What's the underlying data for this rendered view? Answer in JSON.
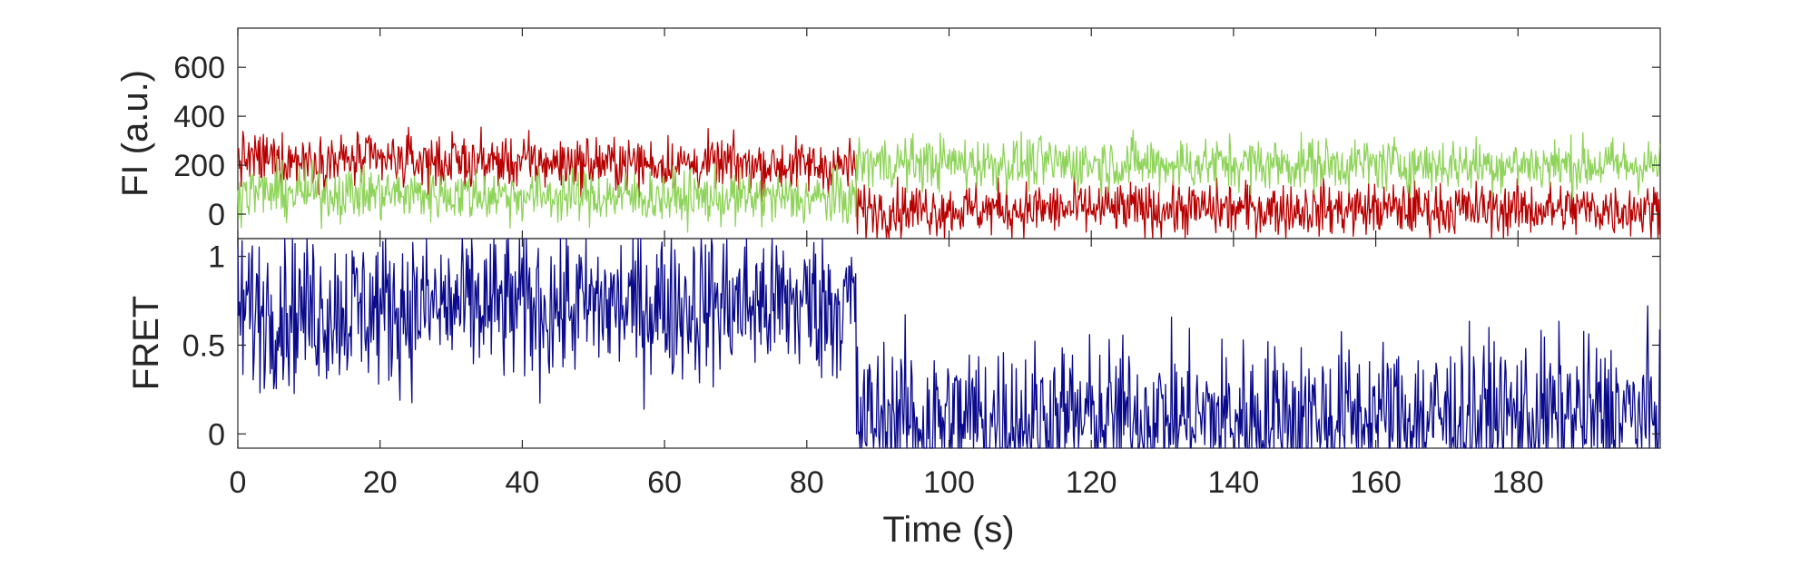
{
  "chart_data": {
    "type": "line",
    "x_range": [
      0,
      200
    ],
    "x_ticks": [
      0,
      20,
      40,
      60,
      80,
      100,
      120,
      140,
      160,
      180
    ],
    "xlabel": "Time (s)",
    "grid": false,
    "legend": "none",
    "panels": [
      {
        "id": "fluorescence",
        "ylabel": "FI (a.u.)",
        "ylim": [
          -100,
          760
        ],
        "y_ticks": [
          0,
          200,
          400,
          600
        ],
        "series": [
          {
            "color": "#b80000",
            "noise_amplitude": 55,
            "segments": [
              {
                "x": [
                  0,
                  87
                ],
                "y": [
                  225,
                  195
                ]
              },
              {
                "x": [
                  87,
                  200
                ],
                "y": [
                  20,
                  20
                ]
              }
            ]
          },
          {
            "color": "#8fd45a",
            "noise_amplitude": 55,
            "segments": [
              {
                "x": [
                  0,
                  87
                ],
                "y": [
                  90,
                  60
                ]
              },
              {
                "x": [
                  87,
                  200
                ],
                "y": [
                  210,
                  200
                ]
              }
            ]
          }
        ]
      },
      {
        "id": "fret",
        "ylabel": "FRET",
        "ylim": [
          -0.08,
          1.1
        ],
        "y_ticks": [
          0,
          0.5,
          1
        ],
        "series": [
          {
            "color": "#0a0a8c",
            "noise_amplitude": 0.22,
            "segments": [
              {
                "x": [
                  0,
                  87
                ],
                "y": [
                  0.7,
                  0.74
                ]
              },
              {
                "x": [
                  87,
                  200
                ],
                "y": [
                  0.08,
                  0.1
                ]
              }
            ]
          }
        ]
      }
    ]
  }
}
